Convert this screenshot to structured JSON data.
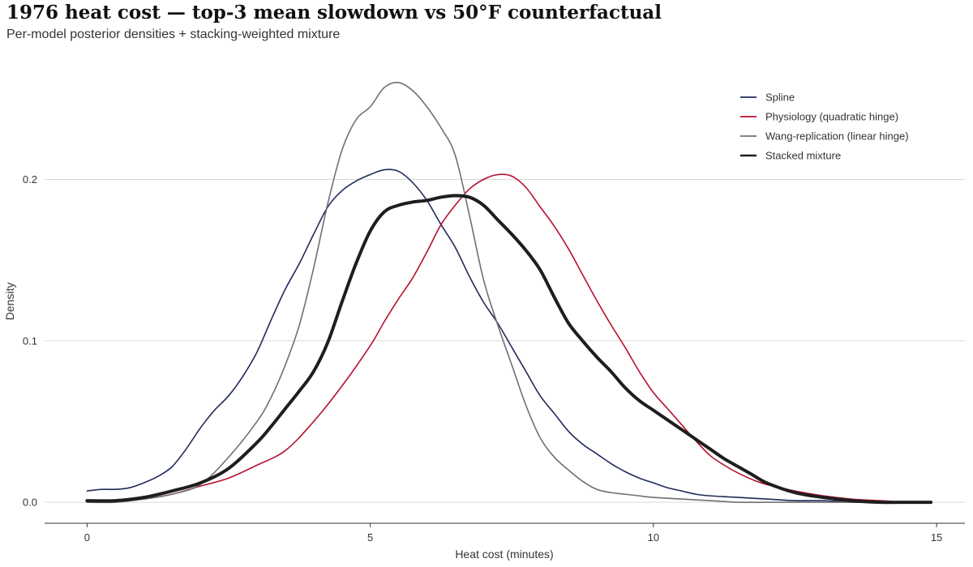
{
  "header": {
    "title": "1976 heat cost — top-3 mean slowdown vs 50°F counterfactual",
    "subtitle": "Per-model posterior densities + stacking-weighted mixture"
  },
  "chart_data": {
    "type": "line",
    "title": "1976 heat cost — top-3 mean slowdown vs 50°F counterfactual",
    "subtitle": "Per-model posterior densities + stacking-weighted mixture",
    "xlabel": "Heat cost (minutes)",
    "ylabel": "Density",
    "xlim": [
      -0.75,
      15.5
    ],
    "ylim": [
      -0.013,
      0.268
    ],
    "xticks": [
      0,
      5,
      10,
      15
    ],
    "xtick_labels": [
      "0",
      "5",
      "10",
      "15"
    ],
    "yticks": [
      0.0,
      0.1,
      0.2
    ],
    "ytick_labels": [
      "0.0",
      "0.1",
      "0.2"
    ],
    "grid": "horizontal",
    "legend_position": "top-right",
    "series": [
      {
        "name": "Spline",
        "color": "#1f2a5c",
        "stroke": "thin",
        "x": [
          0,
          0.25,
          0.5,
          0.75,
          1,
          1.25,
          1.5,
          1.75,
          2,
          2.25,
          2.5,
          2.75,
          3,
          3.25,
          3.5,
          3.75,
          4,
          4.25,
          4.5,
          4.75,
          5,
          5.25,
          5.5,
          5.75,
          6,
          6.25,
          6.5,
          6.75,
          7,
          7.25,
          7.5,
          7.75,
          8,
          8.25,
          8.5,
          8.75,
          9,
          9.25,
          9.5,
          9.75,
          10,
          10.25,
          10.5,
          10.75,
          11,
          11.5,
          12,
          12.5,
          13,
          13.5,
          14,
          14.5,
          14.9
        ],
        "values": [
          0.007,
          0.008,
          0.008,
          0.009,
          0.012,
          0.016,
          0.022,
          0.033,
          0.046,
          0.057,
          0.066,
          0.078,
          0.093,
          0.113,
          0.132,
          0.148,
          0.166,
          0.183,
          0.193,
          0.199,
          0.203,
          0.206,
          0.205,
          0.198,
          0.187,
          0.172,
          0.158,
          0.14,
          0.124,
          0.111,
          0.096,
          0.081,
          0.066,
          0.055,
          0.044,
          0.036,
          0.03,
          0.024,
          0.019,
          0.015,
          0.012,
          0.009,
          0.007,
          0.005,
          0.004,
          0.003,
          0.002,
          0.001,
          0.001,
          0.0,
          0.0,
          0.0,
          0.0
        ]
      },
      {
        "name": "Physiology (quadratic hinge)",
        "color": "#b5102f",
        "stroke": "thin",
        "x": [
          0,
          0.5,
          1,
          1.5,
          2,
          2.5,
          3,
          3.5,
          4,
          4.5,
          5,
          5.25,
          5.5,
          5.75,
          6,
          6.25,
          6.5,
          6.75,
          7,
          7.25,
          7.5,
          7.75,
          8,
          8.25,
          8.5,
          8.75,
          9,
          9.25,
          9.5,
          9.75,
          10,
          10.25,
          10.5,
          10.75,
          11,
          11.25,
          11.5,
          11.75,
          12,
          12.5,
          13,
          13.5,
          14,
          14.5,
          14.9
        ],
        "values": [
          0.0,
          0.001,
          0.002,
          0.005,
          0.01,
          0.015,
          0.023,
          0.032,
          0.05,
          0.072,
          0.097,
          0.112,
          0.126,
          0.139,
          0.155,
          0.172,
          0.184,
          0.194,
          0.2,
          0.203,
          0.202,
          0.195,
          0.183,
          0.171,
          0.157,
          0.141,
          0.125,
          0.11,
          0.096,
          0.081,
          0.068,
          0.058,
          0.048,
          0.038,
          0.029,
          0.023,
          0.018,
          0.014,
          0.011,
          0.007,
          0.004,
          0.002,
          0.001,
          0.0,
          0.0
        ]
      },
      {
        "name": "Wang-replication (linear hinge)",
        "color": "#707070",
        "stroke": "thin",
        "x": [
          0,
          0.5,
          1,
          1.5,
          2,
          2.5,
          3,
          3.25,
          3.5,
          3.75,
          4,
          4.25,
          4.5,
          4.75,
          5,
          5.25,
          5.5,
          5.75,
          6,
          6.25,
          6.5,
          6.75,
          7,
          7.25,
          7.5,
          7.75,
          8,
          8.25,
          8.5,
          8.75,
          9,
          9.25,
          9.5,
          9.75,
          10,
          10.5,
          11,
          11.5,
          12,
          12.5,
          13,
          13.5,
          14,
          14.5,
          14.9
        ],
        "values": [
          0.0,
          0.0,
          0.002,
          0.005,
          0.011,
          0.028,
          0.05,
          0.065,
          0.085,
          0.11,
          0.145,
          0.185,
          0.218,
          0.237,
          0.245,
          0.257,
          0.26,
          0.255,
          0.245,
          0.232,
          0.215,
          0.178,
          0.138,
          0.11,
          0.085,
          0.06,
          0.04,
          0.028,
          0.02,
          0.013,
          0.008,
          0.006,
          0.005,
          0.004,
          0.003,
          0.002,
          0.001,
          0.0,
          0.0,
          0.0,
          0.0,
          0.0,
          0.0,
          0.0,
          0.0
        ]
      },
      {
        "name": "Stacked mixture",
        "color": "#1e1e1e",
        "stroke": "thick",
        "x": [
          0,
          0.5,
          1,
          1.5,
          2,
          2.5,
          3,
          3.25,
          3.5,
          3.75,
          4,
          4.25,
          4.5,
          4.75,
          5,
          5.25,
          5.5,
          5.75,
          6,
          6.25,
          6.5,
          6.75,
          7,
          7.25,
          7.5,
          7.75,
          8,
          8.25,
          8.5,
          8.75,
          9,
          9.25,
          9.5,
          9.75,
          10,
          10.25,
          10.5,
          10.75,
          11,
          11.25,
          11.5,
          11.75,
          12,
          12.5,
          13,
          13.5,
          14,
          14.5,
          14.9
        ],
        "values": [
          0.001,
          0.001,
          0.003,
          0.007,
          0.012,
          0.021,
          0.037,
          0.047,
          0.058,
          0.069,
          0.081,
          0.099,
          0.124,
          0.148,
          0.168,
          0.18,
          0.184,
          0.186,
          0.187,
          0.189,
          0.19,
          0.189,
          0.184,
          0.175,
          0.166,
          0.156,
          0.144,
          0.127,
          0.111,
          0.1,
          0.09,
          0.081,
          0.071,
          0.063,
          0.057,
          0.051,
          0.045,
          0.039,
          0.033,
          0.027,
          0.022,
          0.017,
          0.012,
          0.006,
          0.003,
          0.001,
          0.0,
          0.0,
          0.0
        ]
      }
    ]
  }
}
